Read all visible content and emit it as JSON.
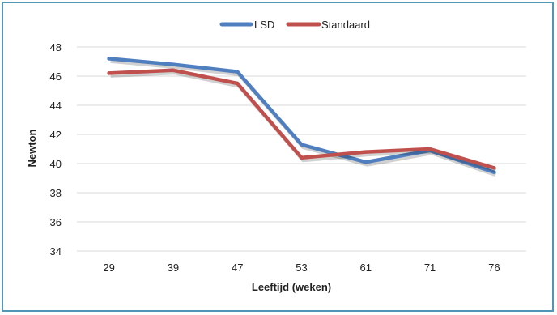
{
  "chart_data": {
    "type": "line",
    "categories": [
      "29",
      "39",
      "47",
      "53",
      "61",
      "71",
      "76"
    ],
    "series": [
      {
        "name": "LSD",
        "color": "#4f7fbf",
        "values": [
          47.2,
          46.8,
          46.3,
          41.3,
          40.1,
          40.9,
          39.4
        ]
      },
      {
        "name": "Standaard",
        "color": "#c0504d",
        "values": [
          46.2,
          46.4,
          45.5,
          40.4,
          40.8,
          41.0,
          39.7
        ]
      }
    ],
    "xlabel": "Leeftijd (weken)",
    "ylabel": "Newton",
    "ylim": [
      34,
      48
    ],
    "yticks": [
      "34",
      "36",
      "38",
      "40",
      "42",
      "44",
      "46",
      "48"
    ],
    "grid": true,
    "legend": "top-center"
  }
}
